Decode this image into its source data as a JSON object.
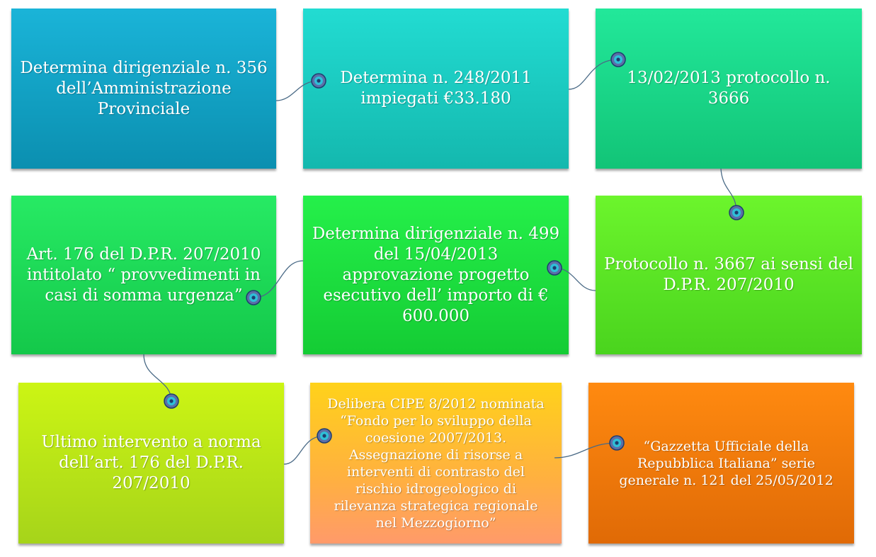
{
  "steps": [
    {
      "text": "Determina dirigenziale n. 356\ndell’Amministrazione\nProvinciale",
      "color": "#1a9cbf"
    },
    {
      "text": "Determina n. 248/2011\nimpiegati €33.180",
      "color": "#1cc9c2"
    },
    {
      "text": "13/02/2013 protocollo n.\n3666",
      "color": "#1ed68a"
    },
    {
      "text": "Protocollo n. 3667 ai sensi del\nD.P.R. 207/2010",
      "color": "#58e82e"
    },
    {
      "text": "Determina dirigenziale n. 499\ndel 15/04/2013\napprovazione progetto\nesecutivo dell’ importo di €\n600.000",
      "color": "#1ee640"
    },
    {
      "text": "Art. 176 del D.P.R. 207/2010\nintitolato “ provvedimenti in\ncasi di somma urgenza”",
      "color": "#20dc55"
    },
    {
      "text": "Ultimo intervento a norma\ndell’art. 176 del D.P.R.\n207/2010",
      "color": "#b7e21c"
    },
    {
      "text": "Delibera CIPE 8/2012 nominata\n“Fondo per lo sviluppo della\ncoesione 2007/2013.\nAssegnazione di risorse a\ninterventi di contrasto del\nrischio idrogeologico di\nrilevanza strategica regionale\nnel Mezzogiorno”",
      "color": "#ffb020"
    },
    {
      "text": "“Gazzetta Ufficiale della\nRepubblica Italiana” serie\ngenerale n. 121 del 25/05/2012",
      "color": "#f07a10"
    }
  ]
}
